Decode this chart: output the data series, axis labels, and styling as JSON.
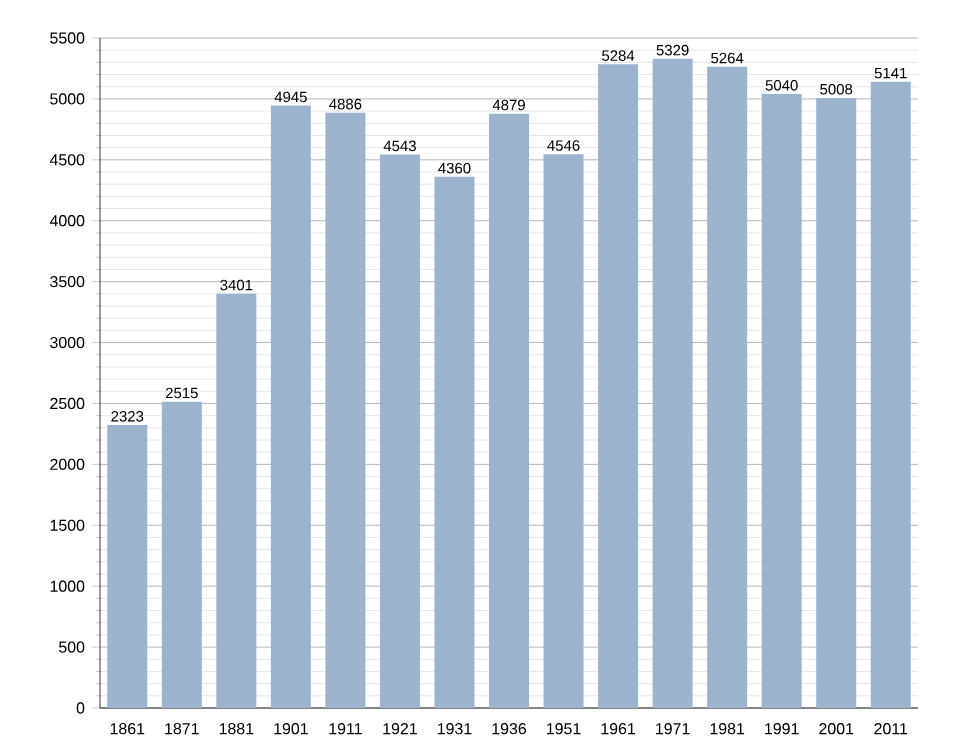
{
  "chart_data": {
    "type": "bar",
    "categories": [
      "1861",
      "1871",
      "1881",
      "1901",
      "1911",
      "1921",
      "1931",
      "1936",
      "1951",
      "1961",
      "1971",
      "1981",
      "1991",
      "2001",
      "2011"
    ],
    "values": [
      2323,
      2515,
      3401,
      4945,
      4886,
      4543,
      4360,
      4879,
      4546,
      5284,
      5329,
      5264,
      5040,
      5008,
      5141
    ],
    "color": "#9bb3cd",
    "data_labels": true,
    "grid": "y",
    "ylim": [
      0,
      5500
    ],
    "yticks": [
      0,
      500,
      1000,
      1500,
      2000,
      2500,
      3000,
      3500,
      4000,
      4500,
      5000,
      5500
    ]
  }
}
